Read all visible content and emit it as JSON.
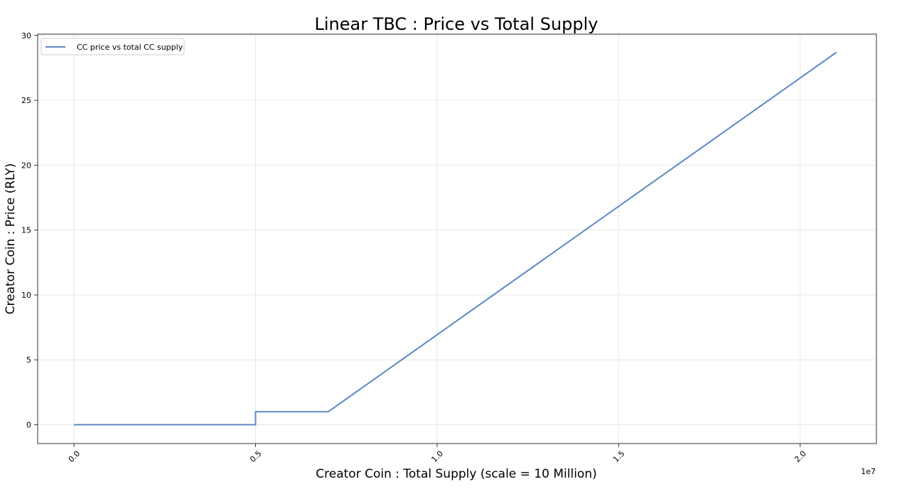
{
  "chart_data": {
    "type": "line",
    "title": "Linear TBC : Price vs Total Supply",
    "xlabel": "Creator Coin : Total Supply (scale = 10 Million)",
    "ylabel": "Creator Coin : Price (RLY)",
    "x_offset_label": "1e7",
    "xlim": [
      -0.1,
      2.21
    ],
    "ylim": [
      -1.45,
      30.1
    ],
    "x_ticks": [
      0.0,
      0.5,
      1.0,
      1.5,
      2.0
    ],
    "x_tick_labels": [
      "0.0",
      "0.5",
      "1.0",
      "1.5",
      "2.0"
    ],
    "y_ticks": [
      0,
      5,
      10,
      15,
      20,
      25,
      30
    ],
    "y_tick_labels": [
      "0",
      "5",
      "10",
      "15",
      "20",
      "25",
      "30"
    ],
    "grid": true,
    "legend_position": "top-left",
    "series": [
      {
        "name": "CC price vs total CC supply",
        "color": "#5b87c5",
        "x": [
          0.0,
          0.5,
          0.5,
          0.7,
          2.1
        ],
        "y": [
          0,
          0,
          1,
          1,
          28.7
        ]
      }
    ]
  }
}
